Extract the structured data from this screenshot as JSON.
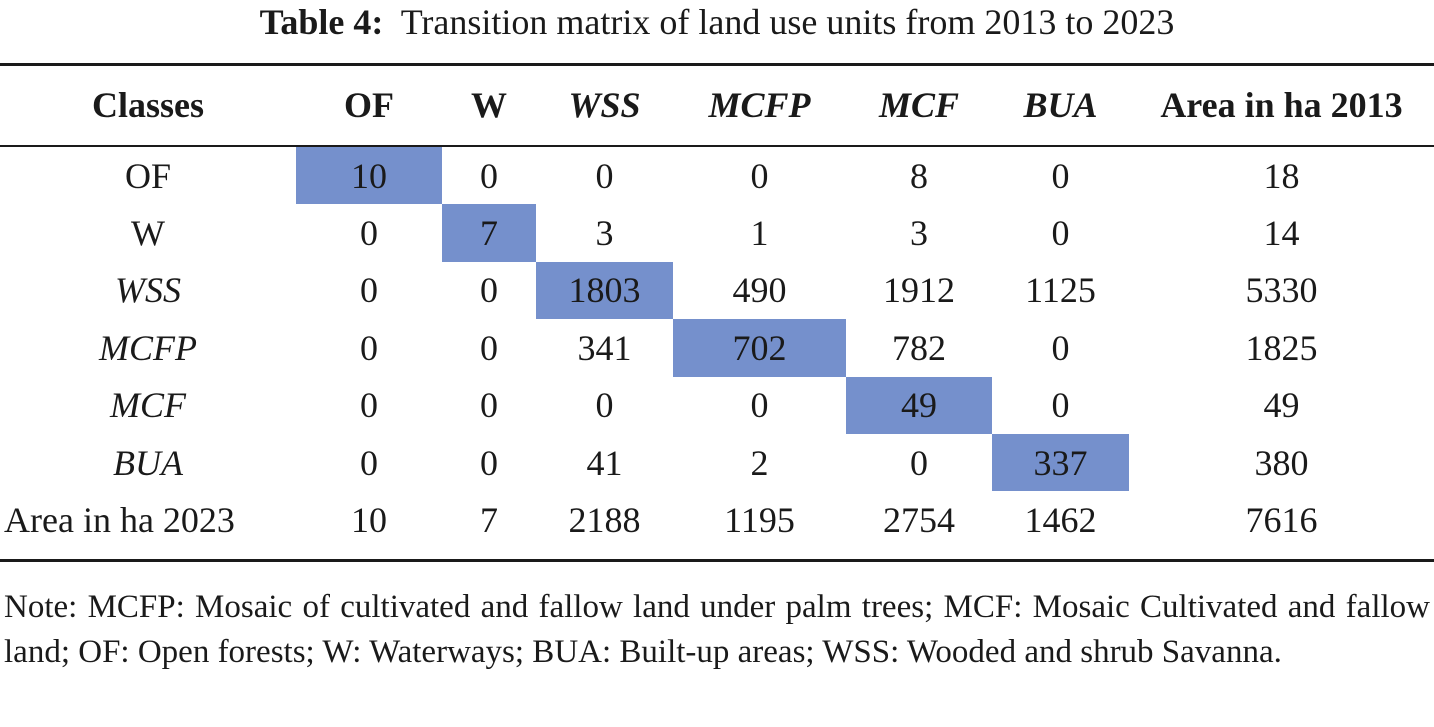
{
  "caption": {
    "label": "Table 4:",
    "title": "Transition matrix of land use units from 2013 to 2023"
  },
  "table": {
    "header": [
      "Classes",
      "OF",
      "W",
      "WSS",
      "MCFP",
      "MCF",
      "BUA",
      "Area in ha 2013"
    ],
    "rows": [
      {
        "label": "OF",
        "cells": [
          "10",
          "0",
          "0",
          "0",
          "8",
          "0",
          "18"
        ]
      },
      {
        "label": "W",
        "cells": [
          "0",
          "7",
          "3",
          "1",
          "3",
          "0",
          "14"
        ]
      },
      {
        "label": "WSS",
        "cells": [
          "0",
          "0",
          "1803",
          "490",
          "1912",
          "1125",
          "5330"
        ]
      },
      {
        "label": "MCFP",
        "cells": [
          "0",
          "0",
          "341",
          "702",
          "782",
          "0",
          "1825"
        ]
      },
      {
        "label": "MCF",
        "cells": [
          "0",
          "0",
          "0",
          "0",
          "49",
          "0",
          "49"
        ]
      },
      {
        "label": "BUA",
        "cells": [
          "0",
          "0",
          "41",
          "2",
          "0",
          "337",
          "380"
        ]
      },
      {
        "label": "Area in ha 2023",
        "cells": [
          "10",
          "7",
          "2188",
          "1195",
          "2754",
          "1462",
          "7616"
        ]
      }
    ],
    "highlight_color": "#7590cc"
  },
  "note": "Note: MCFP: Mosaic of cultivated and fallow land under palm trees; MCF: Mosaic Cultivated and fallow land; OF: Open forests; W: Waterways; BUA: Built-up areas; WSS: Wooded and shrub Savanna."
}
